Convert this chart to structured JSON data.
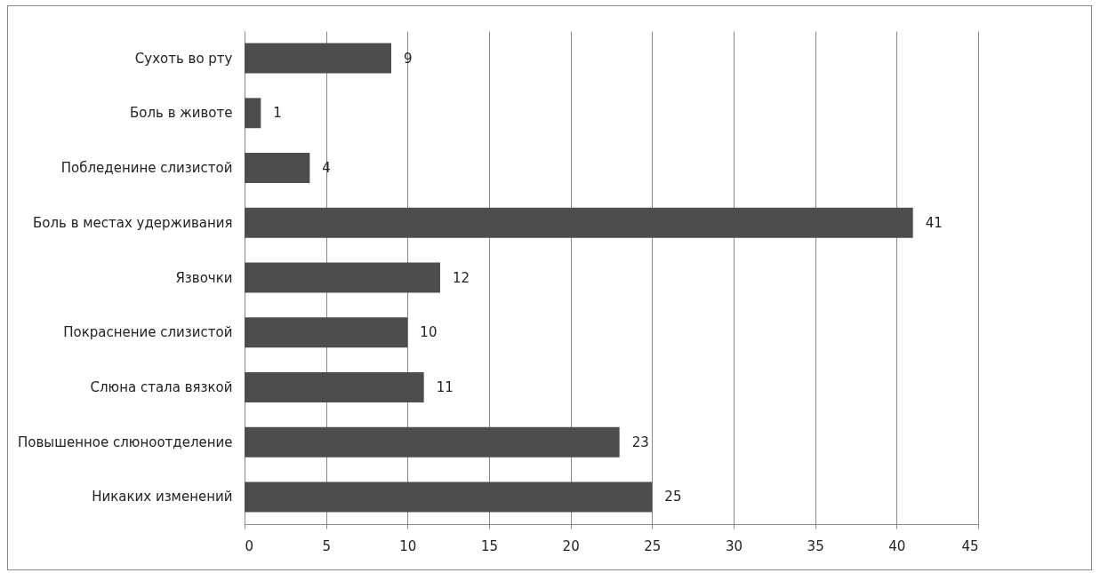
{
  "chart_data": {
    "type": "bar",
    "orientation": "horizontal",
    "categories": [
      "Сухоть во рту",
      "Боль в животе",
      "Побледенине слизистой",
      "Боль в местах удерживания",
      "Язвочки",
      "Покраснение слизистой",
      "Слюна стала вязкой",
      "Повышенное слюноотделение",
      "Никаких изменений"
    ],
    "values": [
      9,
      1,
      4,
      41,
      12,
      10,
      11,
      23,
      25
    ],
    "color": "#4d4d4d",
    "xlim": [
      0,
      45
    ],
    "xticks": [
      0,
      5,
      10,
      15,
      20,
      25,
      30,
      35,
      40,
      45
    ],
    "grid": "x",
    "data_labels": true
  }
}
